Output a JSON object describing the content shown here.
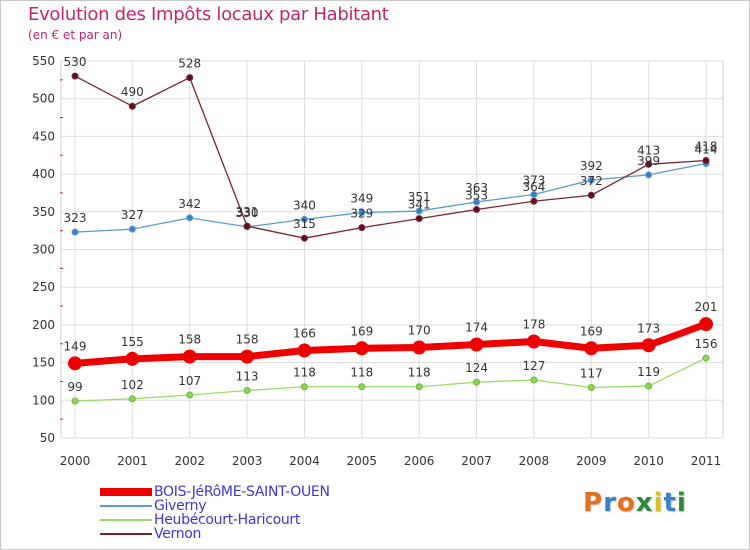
{
  "title": "Evolution des Impôts locaux par Habitant",
  "subtitle": "(en € et par an)",
  "logo": "Proxiti",
  "chart_data": {
    "type": "line",
    "title": "Evolution des Impôts locaux par Habitant",
    "subtitle": "(en € et par an)",
    "x": [
      "2000",
      "2001",
      "2002",
      "2003",
      "2004",
      "2005",
      "2006",
      "2007",
      "2008",
      "2009",
      "2010",
      "2011"
    ],
    "ylim": [
      50,
      550
    ],
    "yticks": [
      50,
      100,
      150,
      200,
      250,
      300,
      350,
      400,
      450,
      500,
      550
    ],
    "grid": true,
    "legend_position": "bottom-left",
    "series": [
      {
        "name": "BOIS-JéRôME-SAINT-OUEN",
        "color": "#ee0000",
        "values": [
          149,
          155,
          158,
          158,
          166,
          169,
          170,
          174,
          178,
          169,
          173,
          201
        ]
      },
      {
        "name": "Giverny",
        "color": "#5b9bd0",
        "values": [
          323,
          327,
          342,
          330,
          340,
          349,
          351,
          363,
          373,
          392,
          399,
          414
        ]
      },
      {
        "name": "Heubécourt-Haricourt",
        "color": "#99dd66",
        "values": [
          99,
          102,
          107,
          113,
          118,
          118,
          118,
          124,
          127,
          117,
          119,
          156
        ]
      },
      {
        "name": "Vernon",
        "color": "#7a2430",
        "values": [
          530,
          490,
          528,
          331,
          315,
          329,
          341,
          353,
          364,
          372,
          413,
          418
        ]
      }
    ]
  }
}
